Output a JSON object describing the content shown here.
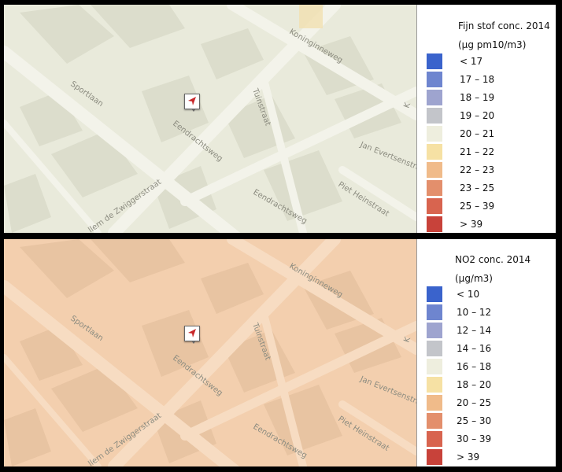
{
  "streets": {
    "koninginneweg": "Koninginneweg",
    "sportlaan": "Sportlaan",
    "tuinstraat": "Tuinstraat",
    "eendrachtsweg": "Eendrachtsweg",
    "jan_evertsenstraat": "Jan Evertsenstraat",
    "piet_heinstraat": "Piet Heinstraat",
    "zwiggerstraat": "llem de Zwiggerstraat",
    "edge_k": "K"
  },
  "top_panel": {
    "map_tint": "#e9eadb",
    "title_line1": "Fijn stof conc. 2014",
    "title_line2": "(µg pm10/m3)",
    "icon": "navigation-arrow-icon",
    "legend": [
      {
        "label": "< 17",
        "color": "#3a63cc"
      },
      {
        "label": "17 – 18",
        "color": "#6e85cf"
      },
      {
        "label": "18 – 19",
        "color": "#9ea4cf"
      },
      {
        "label": "19 – 20",
        "color": "#c3c5ca"
      },
      {
        "label": "20 – 21",
        "color": "#eeeede"
      },
      {
        "label": "21 – 22",
        "color": "#f6e1a4"
      },
      {
        "label": "22 – 23",
        "color": "#f0bb8a"
      },
      {
        "label": "23 – 25",
        "color": "#e38f6c"
      },
      {
        "label": "25 – 39",
        "color": "#d8644f"
      },
      {
        "label": "> 39",
        "color": "#c8423a"
      }
    ]
  },
  "bottom_panel": {
    "map_tint": "#f3cfae",
    "title_line1": "NO2 conc. 2014",
    "title_line2": "(µg/m3)",
    "icon": "navigation-arrow-icon",
    "legend": [
      {
        "label": "< 10",
        "color": "#3a63cc"
      },
      {
        "label": "10 – 12",
        "color": "#6e85cf"
      },
      {
        "label": "12 – 14",
        "color": "#9ea4cf"
      },
      {
        "label": "14 – 16",
        "color": "#c3c5ca"
      },
      {
        "label": "16 – 18",
        "color": "#eeeede"
      },
      {
        "label": "18 – 20",
        "color": "#f6e1a4"
      },
      {
        "label": "20 – 25",
        "color": "#f0bb8a"
      },
      {
        "label": "25 – 30",
        "color": "#e38f6c"
      },
      {
        "label": "30 – 39",
        "color": "#d8644f"
      },
      {
        "label": "> 39",
        "color": "#c8423a"
      }
    ]
  }
}
